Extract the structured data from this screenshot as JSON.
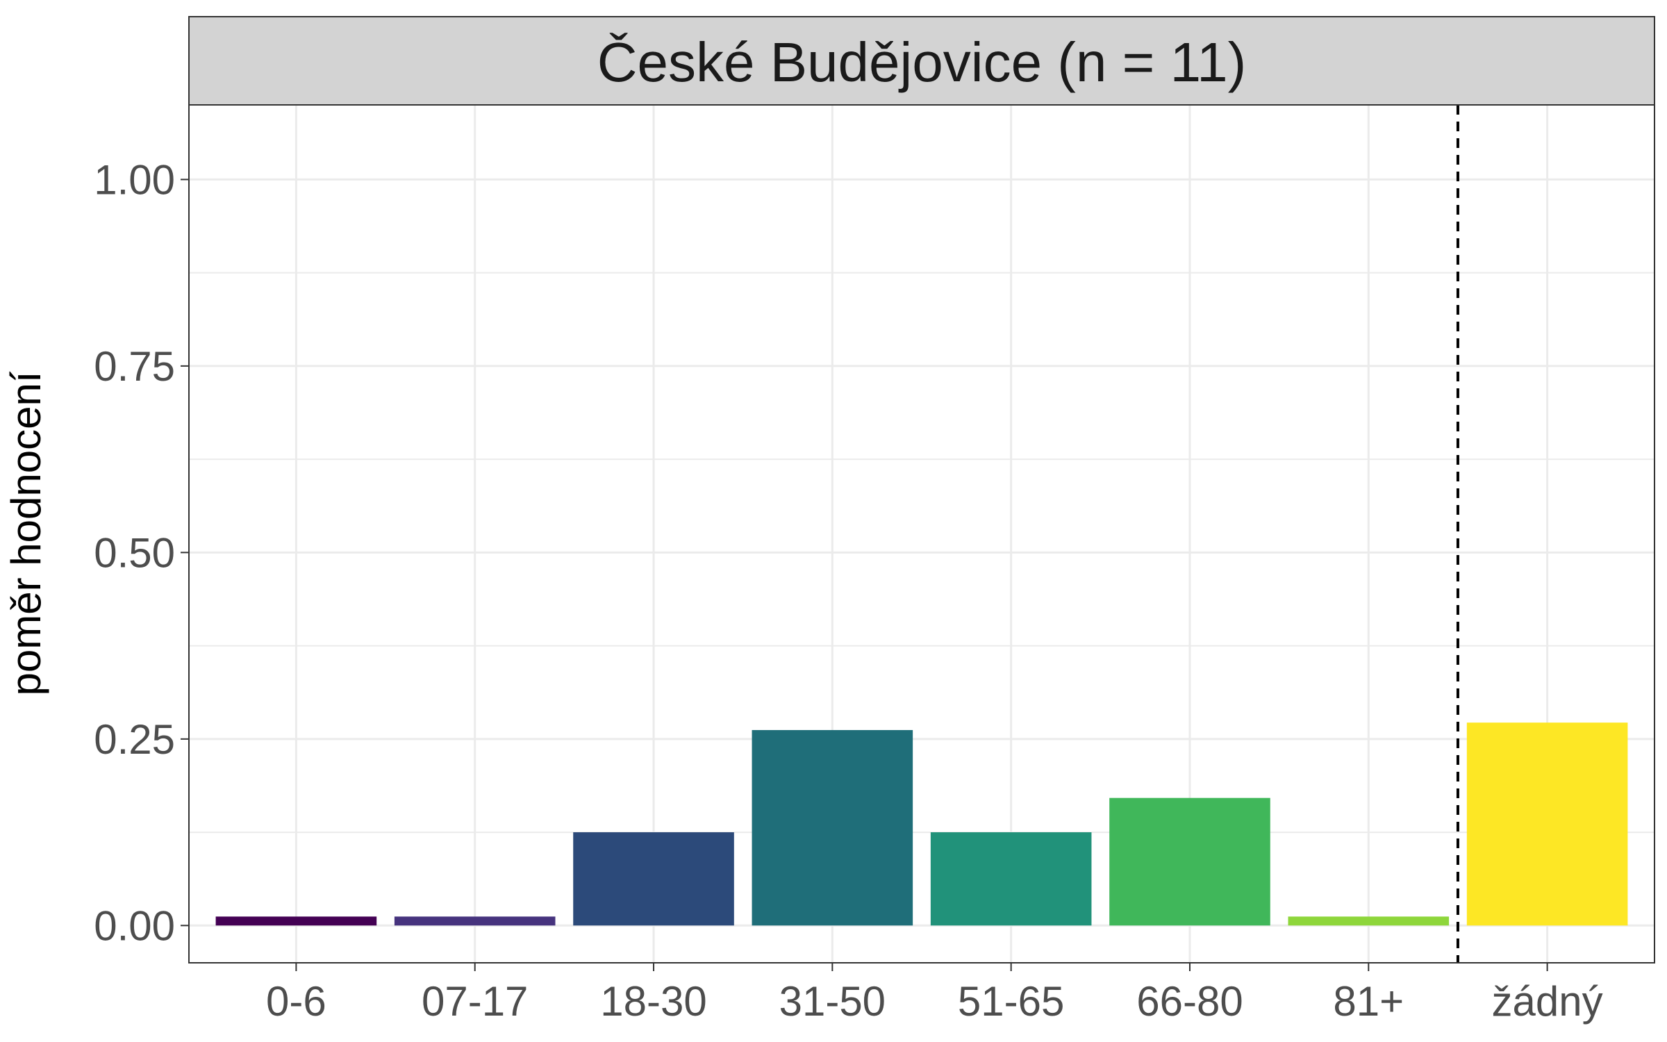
{
  "chart_data": {
    "type": "bar",
    "title": "České Budějovice (n = 11)",
    "ylabel": "poměr hodnocení",
    "xlabel": "",
    "categories": [
      "0-6",
      "07-17",
      "18-30",
      "31-50",
      "51-65",
      "66-80",
      "81+",
      "žádný"
    ],
    "values": [
      0.012,
      0.012,
      0.125,
      0.262,
      0.125,
      0.171,
      0.012,
      0.272
    ],
    "colors": [
      "#440154",
      "#46337e",
      "#2c4a7a",
      "#1f6e79",
      "#21927a",
      "#40b75a",
      "#8ed63b",
      "#fde725"
    ],
    "ylim": [
      -0.05,
      1.1
    ],
    "yticks": [
      0,
      0.25,
      0.5,
      0.75,
      1.0
    ],
    "ytick_labels": [
      "0.00",
      "0.25",
      "0.50",
      "0.75",
      "1.00"
    ],
    "separator_after_category": "81+",
    "separator_style": "dashed",
    "grid": true,
    "legend": "none"
  }
}
